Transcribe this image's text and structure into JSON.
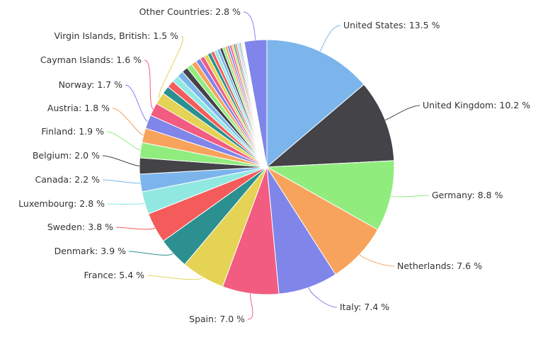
{
  "chart_data": {
    "type": "pie",
    "unit": "%",
    "slices": [
      {
        "name": "United States",
        "value": 13.5,
        "color": "#7cb5ec"
      },
      {
        "name": "United Kingdom",
        "value": 10.2,
        "color": "#434348"
      },
      {
        "name": "Germany",
        "value": 8.8,
        "color": "#90ed7d"
      },
      {
        "name": "Netherlands",
        "value": 7.6,
        "color": "#f7a35c"
      },
      {
        "name": "Italy",
        "value": 7.4,
        "color": "#8085e9"
      },
      {
        "name": "Spain",
        "value": 7.0,
        "color": "#f15c80"
      },
      {
        "name": "France",
        "value": 5.4,
        "color": "#e4d354"
      },
      {
        "name": "Denmark",
        "value": 3.9,
        "color": "#2b908f"
      },
      {
        "name": "Sweden",
        "value": 3.8,
        "color": "#f45b5b"
      },
      {
        "name": "Luxembourg",
        "value": 2.8,
        "color": "#91e8e1"
      },
      {
        "name": "Canada",
        "value": 2.2,
        "color": "#7cb5ec"
      },
      {
        "name": "Belgium",
        "value": 2.0,
        "color": "#434348"
      },
      {
        "name": "Finland",
        "value": 1.9,
        "color": "#90ed7d"
      },
      {
        "name": "Austria",
        "value": 1.8,
        "color": "#f7a35c"
      },
      {
        "name": "Norway",
        "value": 1.7,
        "color": "#8085e9"
      },
      {
        "name": "Cayman Islands",
        "value": 1.6,
        "color": "#f15c80"
      },
      {
        "name": "Virgin Islands, British",
        "value": 1.5,
        "color": "#e4d354"
      },
      {
        "name": "Other Countries",
        "value": 2.8,
        "color": "#8085e9"
      }
    ],
    "minor_slices": {
      "values": [
        1.0,
        0.9,
        0.85,
        0.8,
        0.75,
        0.7,
        0.65,
        0.6,
        0.55,
        0.5,
        0.45,
        0.42,
        0.4,
        0.37,
        0.35,
        0.32,
        0.3,
        0.28,
        0.26,
        0.24,
        0.22,
        0.2,
        0.18,
        0.16,
        0.14,
        0.12,
        0.1,
        0.09,
        0.08,
        0.07
      ],
      "colors": [
        "#2b908f",
        "#f45b5b",
        "#91e8e1",
        "#7cb5ec",
        "#434348",
        "#90ed7d",
        "#f7a35c",
        "#8085e9",
        "#f15c80",
        "#e4d354"
      ]
    }
  }
}
